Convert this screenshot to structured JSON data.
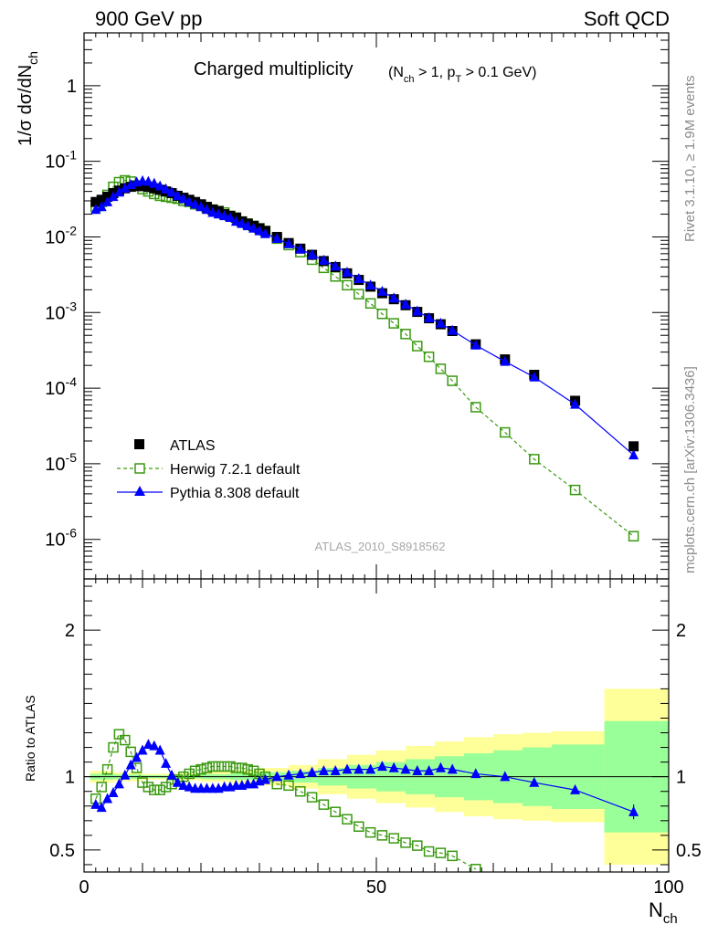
{
  "header": {
    "left": "900 GeV pp",
    "right": "Soft QCD"
  },
  "side_labels": {
    "top": "Rivet 3.1.10, ≥ 1.9M events",
    "bottom": "mcplots.cern.ch [arXiv:1306.3436]"
  },
  "chart_data": [
    {
      "type": "scatter",
      "panel": "main",
      "title": "Charged multiplicity",
      "title_cuts": "(N_ch > 1, p_T > 0.1 GeV)",
      "ylabel": "1/σ dσ/dN_ch",
      "yscale": "log",
      "ylim": [
        3e-07,
        5
      ],
      "xlim": [
        0,
        100
      ],
      "ytick_labels": [
        "10^-6",
        "10^-5",
        "10^-4",
        "10^-3",
        "10^-2",
        "10^-1",
        "1"
      ],
      "watermark": "ATLAS_2010_S8918562",
      "legend": {
        "placement": "bottom-left",
        "entries": [
          "ATLAS",
          "Herwig 7.2.1 default",
          "Pythia 8.308 default"
        ]
      },
      "series": [
        {
          "name": "ATLAS",
          "color": "#000000",
          "marker": "filled-square",
          "x": [
            2,
            3,
            4,
            5,
            6,
            7,
            8,
            9,
            10,
            11,
            12,
            13,
            14,
            15,
            16,
            17,
            18,
            19,
            20,
            21,
            22,
            23,
            24,
            25,
            26,
            27,
            28,
            29,
            30,
            31,
            33,
            35,
            37,
            39,
            41,
            43,
            45,
            47,
            49,
            51,
            53,
            55,
            57,
            59,
            61,
            63,
            67,
            72,
            77,
            84,
            94
          ],
          "y": [
            0.029,
            0.031,
            0.034,
            0.038,
            0.041,
            0.044,
            0.046,
            0.047,
            0.047,
            0.046,
            0.044,
            0.042,
            0.04,
            0.038,
            0.035,
            0.033,
            0.031,
            0.029,
            0.027,
            0.025,
            0.023,
            0.022,
            0.02,
            0.019,
            0.018,
            0.016,
            0.015,
            0.014,
            0.013,
            0.012,
            0.01,
            0.0083,
            0.007,
            0.0058,
            0.0048,
            0.004,
            0.0033,
            0.0027,
            0.0022,
            0.0018,
            0.0015,
            0.00125,
            0.00102,
            0.00084,
            0.0007,
            0.00057,
            0.00038,
            0.00024,
            0.00015,
            6.8e-05,
            1.7e-05
          ]
        },
        {
          "name": "Herwig 7.2.1 default",
          "color": "#3a9a10",
          "marker": "open-square",
          "line": "dashed",
          "x": [
            2,
            3,
            4,
            5,
            6,
            7,
            8,
            9,
            10,
            11,
            12,
            13,
            14,
            15,
            16,
            17,
            18,
            19,
            20,
            21,
            22,
            23,
            24,
            25,
            26,
            27,
            28,
            29,
            30,
            31,
            33,
            35,
            37,
            39,
            41,
            43,
            45,
            47,
            49,
            51,
            53,
            55,
            57,
            59,
            61,
            63,
            67,
            72,
            77,
            84,
            94
          ],
          "y": [
            0.025,
            0.029,
            0.036,
            0.046,
            0.053,
            0.056,
            0.054,
            0.048,
            0.043,
            0.04,
            0.037,
            0.035,
            0.034,
            0.033,
            0.032,
            0.03,
            0.029,
            0.027,
            0.026,
            0.024,
            0.023,
            0.022,
            0.021,
            0.019,
            0.018,
            0.016,
            0.015,
            0.014,
            0.013,
            0.012,
            0.0095,
            0.0078,
            0.0063,
            0.005,
            0.0039,
            0.003,
            0.0023,
            0.00175,
            0.00132,
            0.00096,
            0.00072,
            0.00052,
            0.00036,
            0.00026,
            0.00018,
            0.000125,
            5.6e-05,
            2.6e-05,
            1.15e-05,
            4.5e-06,
            1.1e-06
          ]
        },
        {
          "name": "Pythia 8.308 default",
          "color": "#0000ff",
          "marker": "filled-triangle",
          "line": "solid",
          "x": [
            2,
            3,
            4,
            5,
            6,
            7,
            8,
            9,
            10,
            11,
            12,
            13,
            14,
            15,
            16,
            17,
            18,
            19,
            20,
            21,
            22,
            23,
            24,
            25,
            26,
            27,
            28,
            29,
            30,
            31,
            33,
            35,
            37,
            39,
            41,
            43,
            45,
            47,
            49,
            51,
            53,
            55,
            57,
            59,
            61,
            63,
            67,
            72,
            77,
            84,
            94
          ],
          "y": [
            0.023,
            0.025,
            0.029,
            0.034,
            0.039,
            0.044,
            0.049,
            0.053,
            0.055,
            0.054,
            0.051,
            0.047,
            0.043,
            0.039,
            0.035,
            0.032,
            0.029,
            0.027,
            0.025,
            0.023,
            0.021,
            0.02,
            0.019,
            0.018,
            0.016,
            0.015,
            0.014,
            0.013,
            0.012,
            0.011,
            0.0095,
            0.0081,
            0.0069,
            0.0058,
            0.0049,
            0.0041,
            0.0034,
            0.0028,
            0.0023,
            0.0019,
            0.00155,
            0.00128,
            0.00104,
            0.00085,
            0.00072,
            0.00058,
            0.00037,
            0.000225,
            0.00014,
            6.1e-05,
            1.3e-05
          ]
        }
      ]
    },
    {
      "type": "scatter",
      "panel": "ratio",
      "ylabel": "Ratio to ATLAS",
      "xlabel": "N_ch",
      "ylim": [
        0.35,
        2.35
      ],
      "xlim": [
        0,
        100
      ],
      "xtick_labels": [
        "0",
        "50",
        "100"
      ],
      "ytick_labels": [
        "0.5",
        "1",
        "2"
      ],
      "reference_line": 1,
      "uncertainty_bands": {
        "x_edges": [
          1,
          5,
          10,
          15,
          20,
          25,
          30,
          35,
          40,
          45,
          50,
          55,
          60,
          65,
          70,
          75,
          80,
          89,
          100
        ],
        "yellow_halfwidth": [
          0.04,
          0.03,
          0.02,
          0.025,
          0.035,
          0.045,
          0.06,
          0.08,
          0.12,
          0.15,
          0.18,
          0.21,
          0.24,
          0.27,
          0.29,
          0.3,
          0.31,
          0.6
        ],
        "green_halfwidth": [
          0.02,
          0.015,
          0.01,
          0.012,
          0.017,
          0.022,
          0.03,
          0.04,
          0.06,
          0.08,
          0.1,
          0.12,
          0.14,
          0.16,
          0.18,
          0.2,
          0.22,
          0.38
        ]
      },
      "series": [
        {
          "name": "Herwig 7.2.1 default",
          "color": "#3a9a10",
          "marker": "open-square",
          "line": "dashed",
          "x": [
            2,
            3,
            4,
            5,
            6,
            7,
            8,
            9,
            10,
            11,
            12,
            13,
            14,
            15,
            16,
            17,
            18,
            19,
            20,
            21,
            22,
            23,
            24,
            25,
            26,
            27,
            28,
            29,
            30,
            31,
            33,
            35,
            37,
            39,
            41,
            43,
            45,
            47,
            49,
            51,
            53,
            55,
            57,
            59,
            61,
            63,
            67
          ],
          "y": [
            0.85,
            0.93,
            1.05,
            1.2,
            1.29,
            1.25,
            1.17,
            1.06,
            0.96,
            0.93,
            0.91,
            0.91,
            0.93,
            0.95,
            0.98,
            1.0,
            1.02,
            1.04,
            1.05,
            1.06,
            1.07,
            1.07,
            1.07,
            1.07,
            1.06,
            1.06,
            1.05,
            1.04,
            1.02,
            1.0,
            0.95,
            0.94,
            0.9,
            0.86,
            0.81,
            0.76,
            0.71,
            0.66,
            0.62,
            0.6,
            0.58,
            0.55,
            0.53,
            0.49,
            0.48,
            0.46,
            0.37
          ]
        },
        {
          "name": "Pythia 8.308 default",
          "color": "#0000ff",
          "marker": "filled-triangle",
          "line": "solid",
          "x": [
            2,
            3,
            4,
            5,
            6,
            7,
            8,
            9,
            10,
            11,
            12,
            13,
            14,
            15,
            16,
            17,
            18,
            19,
            20,
            21,
            22,
            23,
            24,
            25,
            26,
            27,
            28,
            29,
            30,
            31,
            33,
            35,
            37,
            39,
            41,
            43,
            45,
            47,
            49,
            51,
            53,
            55,
            57,
            59,
            61,
            63,
            67,
            72,
            77,
            84,
            94
          ],
          "y": [
            0.81,
            0.79,
            0.85,
            0.89,
            0.95,
            1.01,
            1.08,
            1.13,
            1.18,
            1.22,
            1.21,
            1.18,
            1.09,
            1.01,
            0.96,
            0.94,
            0.93,
            0.92,
            0.92,
            0.92,
            0.92,
            0.92,
            0.93,
            0.93,
            0.94,
            0.94,
            0.95,
            0.95,
            0.97,
            0.98,
            1.0,
            1.01,
            1.02,
            1.03,
            1.04,
            1.04,
            1.05,
            1.05,
            1.05,
            1.07,
            1.06,
            1.05,
            1.04,
            1.04,
            1.06,
            1.05,
            1.02,
            1.0,
            0.96,
            0.91,
            0.76
          ]
        }
      ]
    }
  ]
}
